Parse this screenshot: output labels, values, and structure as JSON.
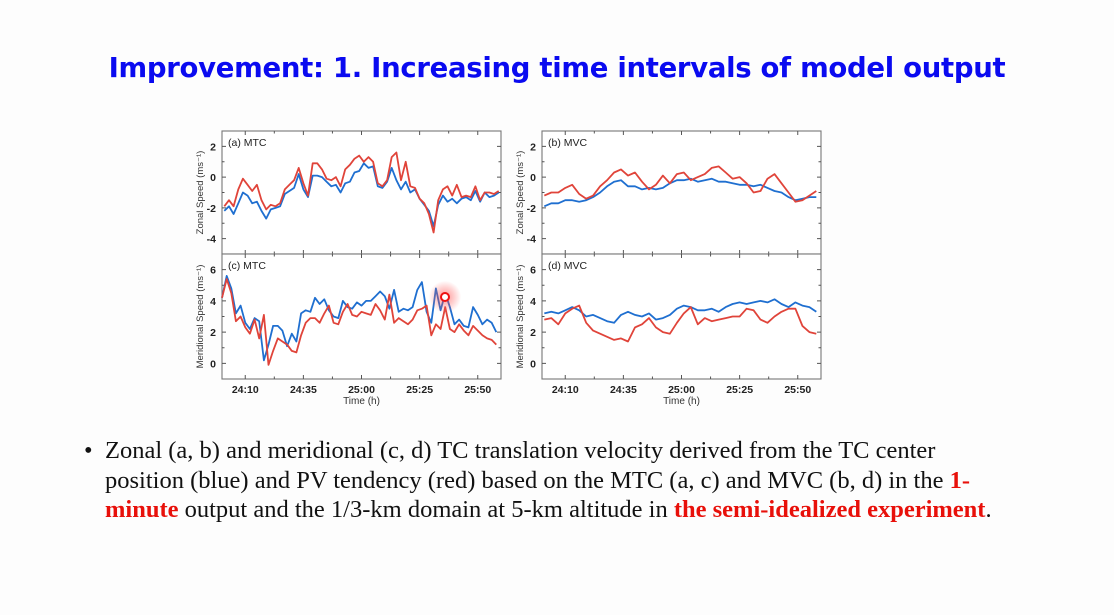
{
  "slide": {
    "title": "Improvement: 1. Increasing time intervals of model output",
    "bullet": {
      "symbol": "•",
      "segments": [
        {
          "text": "Zonal (a, b) and meridional (c, d) TC translation velocity derived from the TC center position (blue) and PV tendency (red) based on the MTC (a, c) and MVC (b, d) in the ",
          "emphasis": false
        },
        {
          "text": "1-minute",
          "emphasis": true
        },
        {
          "text": " output and the 1/3-km domain at 5-km altitude in ",
          "emphasis": false
        },
        {
          "text": "the semi-idealized experiment",
          "emphasis": true
        },
        {
          "text": ".",
          "emphasis": false
        }
      ]
    },
    "colors": {
      "title": "#0a0af0",
      "emphasis": "#e8100a",
      "blue_series": "#1f6fd0",
      "red_series": "#e0443a"
    }
  },
  "chart_data": [
    {
      "type": "line",
      "panel": "(a)",
      "title": "MTC",
      "xlabel": "",
      "ylabel": "Zonal Speed (ms⁻¹)",
      "x_unit": "minutes after 24:00",
      "xlim": [
        0,
        120
      ],
      "ylim": [
        -5,
        3
      ],
      "yticks": [
        2,
        0,
        -2,
        -4
      ],
      "xticks": [
        10,
        35,
        60,
        85,
        110
      ],
      "xtick_labels": [
        "24:10",
        "24:35",
        "25:00",
        "25:25",
        "25:50"
      ],
      "x": [
        1,
        3,
        5,
        7,
        9,
        11,
        13,
        15,
        17,
        19,
        21,
        23,
        25,
        27,
        29,
        31,
        33,
        35,
        37,
        39,
        41,
        43,
        45,
        47,
        49,
        51,
        53,
        55,
        57,
        59,
        61,
        63,
        65,
        67,
        69,
        71,
        73,
        75,
        77,
        79,
        81,
        83,
        85,
        87,
        89,
        91,
        93,
        95,
        97,
        99,
        101,
        103,
        105,
        107,
        109,
        111,
        113,
        115,
        117,
        119
      ],
      "series": [
        {
          "name": "center position (blue)",
          "color": "blue",
          "values": [
            -2.2,
            -1.9,
            -2.4,
            -1.7,
            -1.0,
            -1.2,
            -1.7,
            -1.6,
            -2.2,
            -2.7,
            -2.1,
            -2.0,
            -1.9,
            -1.1,
            -0.9,
            -0.7,
            0.2,
            -0.8,
            -1.3,
            0.1,
            0.1,
            0.0,
            -0.3,
            -0.6,
            -0.5,
            -1.0,
            -0.4,
            -0.3,
            0.3,
            0.4,
            0.9,
            0.6,
            0.7,
            -0.6,
            -0.7,
            -0.3,
            0.6,
            -0.2,
            -0.8,
            -0.3,
            -1.0,
            -0.8,
            -1.4,
            -1.8,
            -2.2,
            -3.2,
            -1.8,
            -1.2,
            -1.6,
            -1.4,
            -1.7,
            -1.4,
            -1.3,
            -1.5,
            -0.9,
            -1.6,
            -1.0,
            -1.3,
            -1.2,
            -1.0
          ]
        },
        {
          "name": "PV tendency (red)",
          "color": "red",
          "values": [
            -1.9,
            -1.5,
            -1.9,
            -0.8,
            -0.1,
            -0.5,
            -0.9,
            -0.5,
            -1.5,
            -2.1,
            -1.8,
            -1.9,
            -1.7,
            -0.8,
            -0.5,
            -0.2,
            0.6,
            -0.4,
            -1.2,
            0.9,
            0.9,
            0.5,
            -0.1,
            -0.2,
            0.0,
            -0.6,
            0.5,
            0.8,
            1.2,
            1.4,
            1.0,
            1.3,
            1.0,
            -0.4,
            -0.6,
            -0.2,
            1.3,
            1.6,
            -0.2,
            1.0,
            -0.6,
            -0.7,
            -1.4,
            -1.7,
            -2.4,
            -3.6,
            -1.5,
            -0.8,
            -0.6,
            -1.2,
            -0.5,
            -1.3,
            -1.2,
            -1.3,
            -0.6,
            -1.5,
            -1.0,
            -1.0,
            -1.1,
            -0.9
          ]
        }
      ]
    },
    {
      "type": "line",
      "panel": "(b)",
      "title": "MVC",
      "xlabel": "",
      "ylabel": "Zonal Speed (ms⁻¹)",
      "x_unit": "minutes after 24:00",
      "xlim": [
        0,
        120
      ],
      "ylim": [
        -5,
        3
      ],
      "yticks": [
        2,
        0,
        -2,
        -4
      ],
      "xticks": [
        10,
        35,
        60,
        85,
        110
      ],
      "xtick_labels": [
        "24:10",
        "24:35",
        "25:00",
        "25:25",
        "25:50"
      ],
      "x": [
        1,
        4,
        7,
        10,
        13,
        16,
        19,
        22,
        25,
        28,
        31,
        34,
        37,
        40,
        43,
        46,
        49,
        52,
        55,
        58,
        61,
        64,
        67,
        70,
        73,
        76,
        79,
        82,
        85,
        88,
        91,
        94,
        97,
        100,
        103,
        106,
        109,
        112,
        115,
        118
      ],
      "series": [
        {
          "name": "center position (blue)",
          "color": "blue",
          "values": [
            -1.9,
            -1.7,
            -1.7,
            -1.5,
            -1.5,
            -1.6,
            -1.5,
            -1.3,
            -1.0,
            -0.6,
            -0.3,
            -0.2,
            -0.6,
            -0.6,
            -0.8,
            -0.7,
            -0.8,
            -0.7,
            -0.4,
            -0.2,
            -0.2,
            -0.1,
            -0.3,
            -0.2,
            -0.1,
            -0.3,
            -0.3,
            -0.4,
            -0.5,
            -0.5,
            -0.6,
            -0.5,
            -0.7,
            -0.9,
            -1.0,
            -1.3,
            -1.5,
            -1.4,
            -1.3,
            -1.3
          ]
        },
        {
          "name": "PV tendency (red)",
          "color": "red",
          "values": [
            -1.2,
            -1.0,
            -1.0,
            -0.7,
            -0.5,
            -1.1,
            -1.4,
            -1.2,
            -0.6,
            -0.2,
            0.3,
            0.5,
            0.1,
            0.3,
            -0.3,
            -0.8,
            -0.5,
            0.1,
            -0.4,
            0.2,
            0.3,
            -0.2,
            0.0,
            0.2,
            0.6,
            0.7,
            0.3,
            -0.1,
            0.0,
            -0.4,
            -1.0,
            -0.9,
            -0.1,
            0.2,
            -0.4,
            -1.0,
            -1.6,
            -1.5,
            -1.2,
            -0.9
          ]
        }
      ]
    },
    {
      "type": "line",
      "panel": "(c)",
      "title": "MTC",
      "xlabel": "Time (h)",
      "ylabel": "Meridional Speed (ms⁻¹)",
      "x_unit": "minutes after 24:00",
      "xlim": [
        0,
        120
      ],
      "ylim": [
        -1,
        7
      ],
      "yticks": [
        6,
        4,
        2,
        0
      ],
      "xticks": [
        10,
        35,
        60,
        85,
        110
      ],
      "xtick_labels": [
        "24:10",
        "24:35",
        "25:00",
        "25:25",
        "25:50"
      ],
      "x": [
        0,
        2,
        4,
        6,
        8,
        10,
        12,
        14,
        16,
        18,
        20,
        22,
        24,
        26,
        28,
        30,
        32,
        34,
        36,
        38,
        40,
        42,
        44,
        46,
        48,
        50,
        52,
        54,
        56,
        58,
        60,
        62,
        64,
        66,
        68,
        70,
        72,
        74,
        76,
        78,
        80,
        82,
        84,
        86,
        88,
        90,
        92,
        94,
        96,
        98,
        100,
        102,
        104,
        106,
        108,
        110,
        112,
        114,
        116,
        118
      ],
      "series": [
        {
          "name": "center position (blue)",
          "color": "blue",
          "values": [
            4.2,
            5.6,
            4.8,
            3.2,
            3.7,
            2.6,
            2.2,
            2.9,
            2.7,
            0.2,
            1.2,
            2.4,
            2.4,
            2.1,
            1.1,
            1.9,
            1.4,
            3.2,
            3.4,
            3.3,
            4.2,
            3.8,
            4.1,
            3.4,
            3.0,
            2.9,
            4.0,
            3.6,
            3.5,
            3.9,
            3.7,
            4.0,
            4.0,
            4.3,
            4.6,
            4.3,
            3.5,
            4.7,
            3.3,
            3.5,
            3.4,
            3.6,
            4.7,
            5.2,
            3.3,
            2.6,
            4.8,
            3.4,
            4.5,
            3.6,
            2.5,
            2.8,
            2.4,
            2.3,
            3.6,
            3.1,
            2.5,
            2.8,
            2.6,
            2.0
          ]
        },
        {
          "name": "PV tendency (red)",
          "color": "red",
          "values": [
            4.2,
            5.4,
            4.5,
            2.7,
            3.0,
            2.3,
            1.9,
            2.8,
            1.6,
            3.1,
            -0.1,
            0.8,
            1.6,
            1.4,
            1.2,
            0.8,
            0.7,
            1.8,
            2.6,
            2.9,
            2.9,
            2.6,
            3.2,
            3.7,
            2.6,
            2.5,
            3.3,
            3.8,
            3.1,
            3.0,
            3.3,
            3.2,
            3.1,
            3.8,
            3.4,
            2.8,
            4.4,
            2.6,
            2.9,
            2.7,
            2.5,
            2.8,
            3.4,
            3.5,
            3.7,
            1.8,
            2.5,
            2.2,
            3.6,
            2.2,
            2.0,
            2.5,
            2.1,
            1.8,
            2.4,
            2.1,
            1.8,
            1.6,
            1.5,
            1.2
          ]
        }
      ]
    },
    {
      "type": "line",
      "panel": "(d)",
      "title": "MVC",
      "xlabel": "Time (h)",
      "ylabel": "Meridional Speed (ms⁻¹)",
      "x_unit": "minutes after 24:00",
      "xlim": [
        0,
        120
      ],
      "ylim": [
        -1,
        7
      ],
      "yticks": [
        6,
        4,
        2,
        0
      ],
      "xticks": [
        10,
        35,
        60,
        85,
        110
      ],
      "xtick_labels": [
        "24:10",
        "24:35",
        "25:00",
        "25:25",
        "25:50"
      ],
      "x": [
        1,
        4,
        7,
        10,
        13,
        16,
        19,
        22,
        25,
        28,
        31,
        34,
        37,
        40,
        43,
        46,
        49,
        52,
        55,
        58,
        61,
        64,
        67,
        70,
        73,
        76,
        79,
        82,
        85,
        88,
        91,
        94,
        97,
        100,
        103,
        106,
        109,
        112,
        115,
        118
      ],
      "series": [
        {
          "name": "center position (blue)",
          "color": "blue",
          "values": [
            3.2,
            3.3,
            3.2,
            3.4,
            3.6,
            3.4,
            3.0,
            3.1,
            2.9,
            2.7,
            2.6,
            3.1,
            3.3,
            3.1,
            3.0,
            3.2,
            2.8,
            2.9,
            3.1,
            3.5,
            3.7,
            3.6,
            3.4,
            3.4,
            3.5,
            3.3,
            3.6,
            3.8,
            3.9,
            3.8,
            3.9,
            4.0,
            3.9,
            4.1,
            3.8,
            3.6,
            3.9,
            3.7,
            3.6,
            3.3
          ]
        },
        {
          "name": "PV tendency (red)",
          "color": "red",
          "values": [
            2.8,
            2.9,
            2.5,
            3.2,
            3.5,
            3.7,
            2.6,
            2.1,
            1.9,
            1.7,
            1.5,
            1.6,
            1.4,
            2.3,
            2.5,
            2.9,
            2.3,
            2.0,
            1.9,
            2.6,
            3.2,
            3.6,
            2.5,
            2.9,
            2.7,
            2.8,
            2.9,
            3.0,
            3.0,
            3.5,
            3.4,
            2.8,
            2.6,
            3.0,
            3.3,
            3.5,
            3.5,
            2.4,
            2.0,
            1.9
          ]
        }
      ]
    }
  ]
}
